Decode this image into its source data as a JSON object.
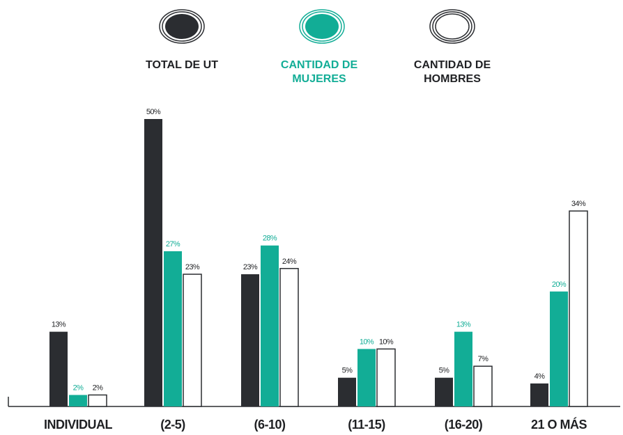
{
  "legend": [
    {
      "label": "TOTAL DE UT",
      "color": "#2b2d31",
      "text_color": "#1f2023"
    },
    {
      "label": "CANTIDAD DE\nMUJERES",
      "color": "#12ad96",
      "text_color": "#12ad96"
    },
    {
      "label": "CANTIDAD DE\nHOMBRES",
      "color": "#ffffff",
      "text_color": "#1f2023"
    }
  ],
  "chart_data": {
    "type": "bar",
    "categories": [
      "INDIVIDUAL",
      "(2-5)",
      "(6-10)",
      "(11-15)",
      "(16-20)",
      "21 O MÁS"
    ],
    "series": [
      {
        "name": "TOTAL DE UT",
        "color": "#2b2d31",
        "values": [
          13,
          50,
          23,
          5,
          5,
          4
        ],
        "labels": [
          "13%",
          "50%",
          "23%",
          "5%",
          "5%",
          "4%"
        ]
      },
      {
        "name": "CANTIDAD DE MUJERES",
        "color": "#12ad96",
        "values": [
          2,
          27,
          28,
          10,
          13,
          20
        ],
        "labels": [
          "2%",
          "27%",
          "28%",
          "10%",
          "13%",
          "20%"
        ]
      },
      {
        "name": "CANTIDAD DE HOMBRES",
        "color": "#ffffff",
        "values": [
          2,
          23,
          24,
          10,
          7,
          34
        ],
        "labels": [
          "2%",
          "23%",
          "24%",
          "10%",
          "7%",
          "34%"
        ]
      }
    ],
    "ylim": [
      0,
      50
    ],
    "grid": false,
    "legend_position": "top"
  }
}
